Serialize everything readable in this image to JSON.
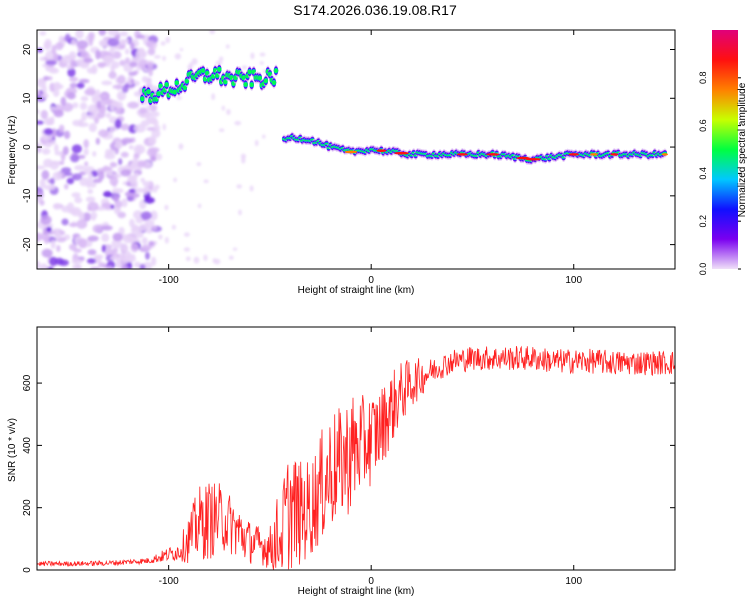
{
  "title": "S174.2026.036.19.08.R17",
  "chart_data": [
    {
      "type": "heatmap",
      "xlabel": "Height of straight line (km)",
      "ylabel": "Frequency (Hz)",
      "xlim": [
        -165,
        150
      ],
      "ylim": [
        -25,
        24
      ],
      "xticks": [
        -100,
        0,
        100
      ],
      "yticks": [
        -20,
        -10,
        0,
        10,
        20
      ],
      "grid": false,
      "colorbar": {
        "label": "Normalized spectral amplitude",
        "range": [
          0.0,
          1.0
        ],
        "ticks": [
          "0.0",
          "0.2",
          "0.4",
          "0.6",
          "0.8"
        ],
        "colormap": [
          "#f0e0f8",
          "#7a00f0",
          "#1010ff",
          "#00c8ff",
          "#00ff40",
          "#c8ff00",
          "#ff8000",
          "#ff1010",
          "#e0007a"
        ]
      },
      "ridge": {
        "description_points_x": [
          -113,
          -105,
          -95,
          -85,
          -78,
          -70,
          -60,
          -50,
          -46,
          -44,
          -40,
          -30,
          -20,
          -10,
          0,
          20,
          40,
          60,
          80,
          100,
          120,
          145
        ],
        "frequency_hz": [
          10.5,
          11,
          12.5,
          14.5,
          15,
          14,
          14,
          14,
          15,
          1,
          2,
          1.5,
          0,
          -1,
          -0.5,
          -1.5,
          -1.5,
          -1.5,
          -2.5,
          -1.5,
          -1.5,
          -1.5
        ]
      },
      "noise_region_x": [
        -165,
        -112
      ]
    },
    {
      "type": "line",
      "xlabel": "Height of straight line (km)",
      "ylabel": "SNR (10 * v/v)",
      "xlim": [
        -165,
        150
      ],
      "ylim": [
        0,
        780
      ],
      "xticks": [
        -100,
        0,
        100
      ],
      "yticks": [
        0,
        200,
        400,
        600
      ],
      "grid": false,
      "series": [
        {
          "color": "#ff0000",
          "x": [
            -165,
            -150,
            -130,
            -110,
            -95,
            -90,
            -85,
            -80,
            -75,
            -70,
            -65,
            -60,
            -55,
            -50,
            -45,
            -40,
            -35,
            -30,
            -25,
            -20,
            -15,
            -10,
            -5,
            0,
            5,
            10,
            15,
            20,
            25,
            30,
            40,
            50,
            60,
            70,
            80,
            90,
            100,
            110,
            120,
            130,
            140,
            150
          ],
          "values": [
            20,
            20,
            22,
            30,
            60,
            100,
            150,
            160,
            170,
            150,
            120,
            90,
            80,
            70,
            120,
            200,
            180,
            200,
            260,
            320,
            340,
            380,
            400,
            420,
            460,
            520,
            570,
            600,
            620,
            640,
            670,
            680,
            680,
            680,
            680,
            670,
            670,
            670,
            665,
            665,
            665,
            665
          ],
          "amplitude": [
            8,
            8,
            8,
            10,
            30,
            80,
            120,
            130,
            110,
            100,
            90,
            70,
            60,
            70,
            160,
            200,
            170,
            160,
            180,
            200,
            180,
            200,
            160,
            150,
            130,
            120,
            100,
            80,
            60,
            40,
            40,
            40,
            40,
            40,
            40,
            40,
            40,
            40,
            40,
            40,
            40,
            40
          ]
        }
      ]
    }
  ]
}
